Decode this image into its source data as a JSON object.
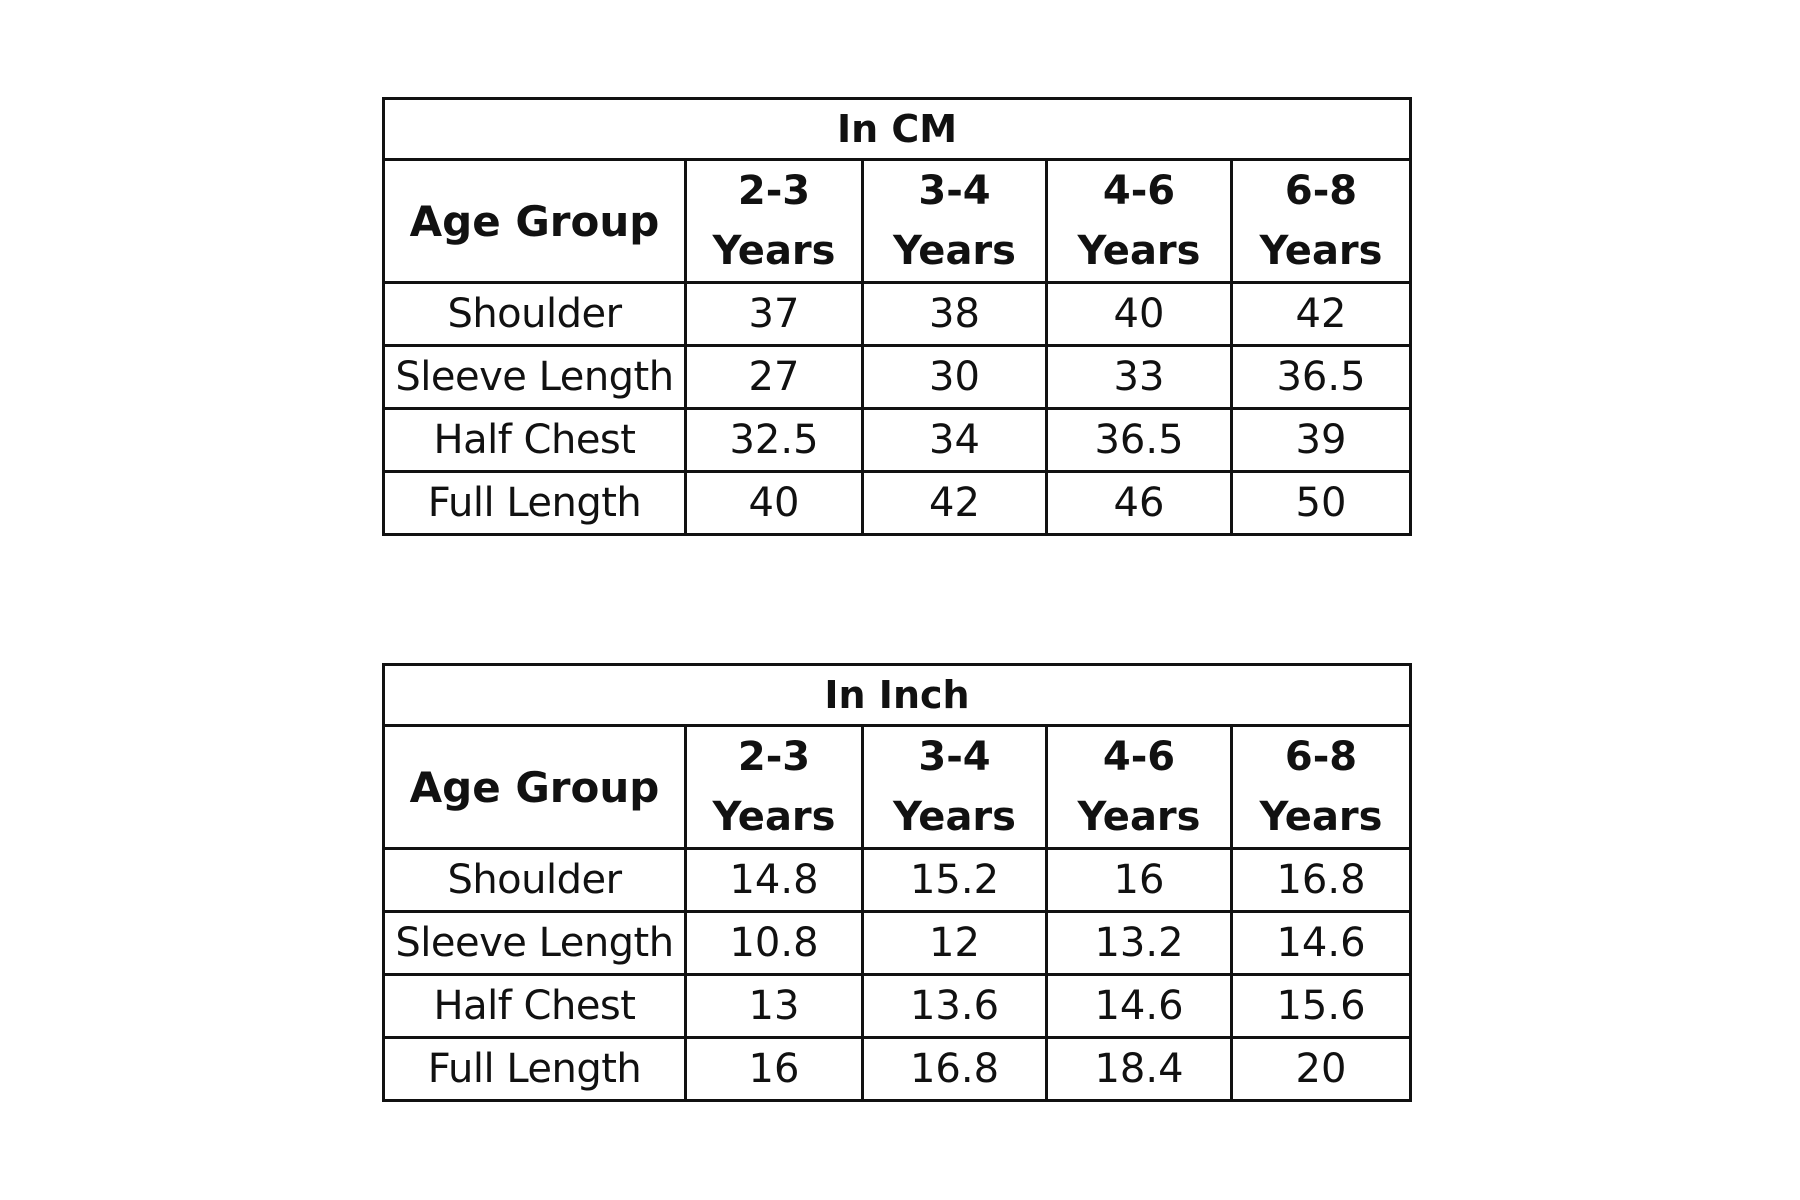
{
  "tables": [
    {
      "title": "In CM",
      "age_group_label": "Age Group",
      "columns": [
        {
          "range": "2-3",
          "unit": "Years"
        },
        {
          "range": "3-4",
          "unit": "Years"
        },
        {
          "range": "4-6",
          "unit": "Years"
        },
        {
          "range": "6-8",
          "unit": "Years"
        }
      ],
      "rows": [
        {
          "label": "Shoulder",
          "values": [
            "37",
            "38",
            "40",
            "42"
          ]
        },
        {
          "label": "Sleeve Length",
          "values": [
            "27",
            "30",
            "33",
            "36.5"
          ]
        },
        {
          "label": "Half Chest",
          "values": [
            "32.5",
            "34",
            "36.5",
            "39"
          ]
        },
        {
          "label": "Full Length",
          "values": [
            "40",
            "42",
            "46",
            "50"
          ]
        }
      ]
    },
    {
      "title": "In Inch",
      "age_group_label": "Age Group",
      "columns": [
        {
          "range": "2-3",
          "unit": "Years"
        },
        {
          "range": "3-4",
          "unit": "Years"
        },
        {
          "range": "4-6",
          "unit": "Years"
        },
        {
          "range": "6-8",
          "unit": "Years"
        }
      ],
      "rows": [
        {
          "label": "Shoulder",
          "values": [
            "14.8",
            "15.2",
            "16",
            "16.8"
          ]
        },
        {
          "label": "Sleeve Length",
          "values": [
            "10.8",
            "12",
            "13.2",
            "14.6"
          ]
        },
        {
          "label": "Half Chest",
          "values": [
            "13",
            "13.6",
            "14.6",
            "15.6"
          ]
        },
        {
          "label": "Full Length",
          "values": [
            "16",
            "16.8",
            "18.4",
            "20"
          ]
        }
      ]
    }
  ]
}
